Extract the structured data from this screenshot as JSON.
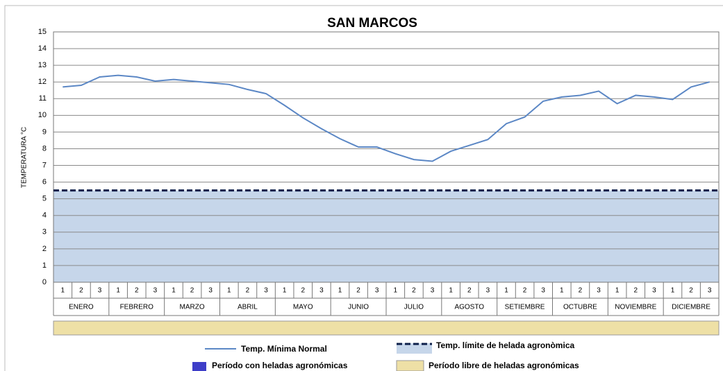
{
  "chart_data": {
    "type": "line",
    "title": "SAN MARCOS",
    "y_label": "TEMPERATURA °C",
    "categories": [
      "1",
      "2",
      "3",
      "1",
      "2",
      "3",
      "1",
      "2",
      "3",
      "1",
      "2",
      "3",
      "1",
      "2",
      "3",
      "1",
      "2",
      "3",
      "1",
      "2",
      "3",
      "1",
      "2",
      "3",
      "1",
      "2",
      "3",
      "1",
      "2",
      "3",
      "1",
      "2",
      "3",
      "1",
      "2",
      "3"
    ],
    "months": [
      "ENERO",
      "FEBRERO",
      "MARZO",
      "ABRIL",
      "MAYO",
      "JUNIO",
      "JULIO",
      "AGOSTO",
      "SETIEMBRE",
      "OCTUBRE",
      "NOVIEMBRE",
      "DICIEMBRE"
    ],
    "series": [
      {
        "name": "Temp. Mínima Normal",
        "color": "#5b87c5",
        "values": [
          11.7,
          11.8,
          12.3,
          12.4,
          12.3,
          12.05,
          12.15,
          12.05,
          11.95,
          11.85,
          11.55,
          11.3,
          10.6,
          9.85,
          9.2,
          8.6,
          8.1,
          8.1,
          7.7,
          7.35,
          7.25,
          7.85,
          8.2,
          8.55,
          9.5,
          9.9,
          10.85,
          11.1,
          11.2,
          11.45,
          10.7,
          11.2,
          11.1,
          10.95,
          11.7,
          12.0
        ]
      }
    ],
    "threshold": {
      "name": "Temp. límite de helada agronòmica",
      "value": 5.5,
      "color": "#0d1f4a",
      "fill": "#c6d6ea"
    },
    "frost_period": {
      "name": "Período con heladas agronómicas",
      "color": "#3e3ec8"
    },
    "free_period": {
      "name": "Período libre de heladas agronómicas",
      "color": "#eee0a6"
    },
    "ylim": [
      0,
      15
    ],
    "yticks": [
      0,
      1,
      2,
      3,
      4,
      5,
      6,
      7,
      8,
      9,
      10,
      11,
      12,
      13,
      14,
      15
    ],
    "grid": true
  }
}
